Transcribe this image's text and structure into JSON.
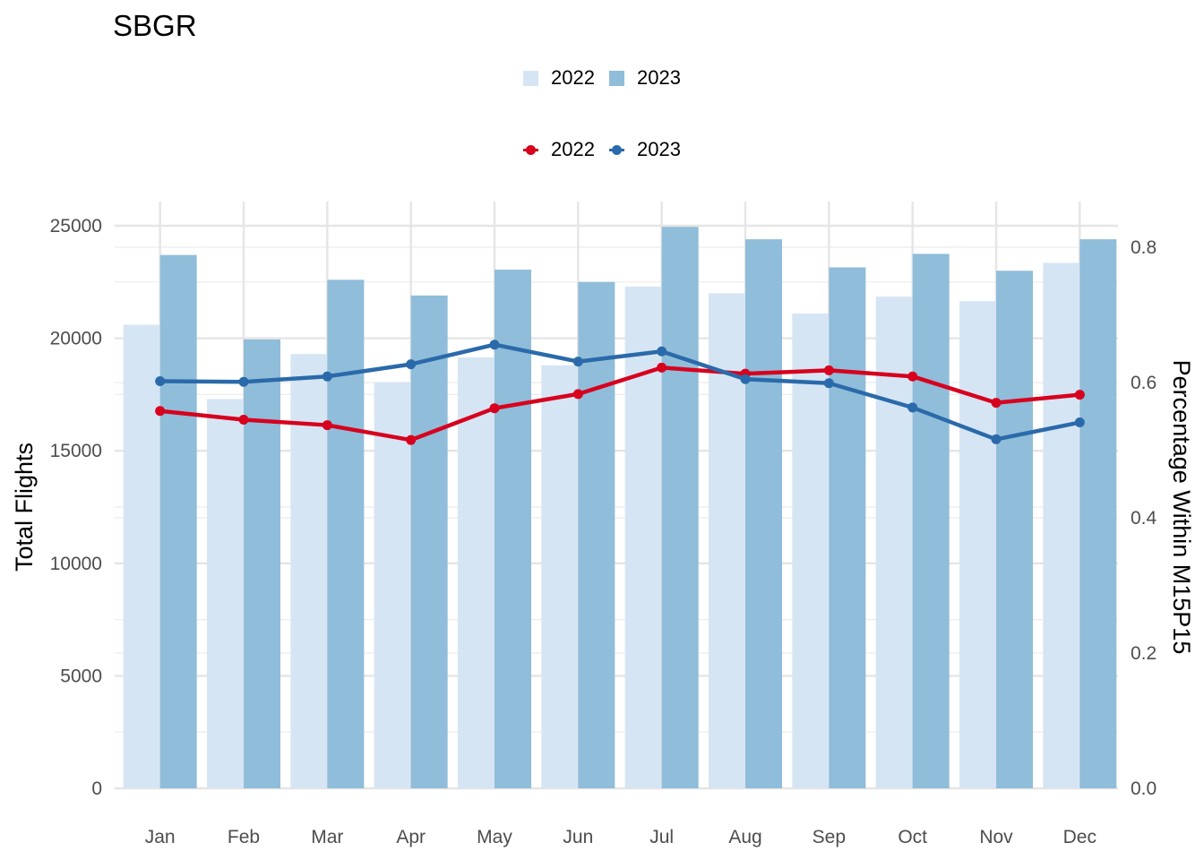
{
  "chart_data": {
    "type": "bar",
    "title": "SBGR",
    "categories": [
      "Jan",
      "Feb",
      "Mar",
      "Apr",
      "May",
      "Jun",
      "Jul",
      "Aug",
      "Sep",
      "Oct",
      "Nov",
      "Dec"
    ],
    "bar_series": [
      {
        "name": "2022",
        "color": "#d6e5f4",
        "values": [
          20600,
          17300,
          19300,
          18050,
          19150,
          18800,
          22300,
          22000,
          21100,
          21850,
          21650,
          23350
        ]
      },
      {
        "name": "2023",
        "color": "#90bdd9",
        "values": [
          23700,
          19950,
          22600,
          21900,
          23050,
          22500,
          24950,
          24400,
          23150,
          23750,
          23000,
          24400
        ]
      }
    ],
    "line_series": [
      {
        "name": "2022",
        "color": "#d7011e",
        "values": [
          0.558,
          0.545,
          0.537,
          0.515,
          0.562,
          0.583,
          0.622,
          0.613,
          0.618,
          0.609,
          0.57,
          0.582
        ]
      },
      {
        "name": "2023",
        "color": "#2b6aaa",
        "values": [
          0.602,
          0.601,
          0.609,
          0.627,
          0.656,
          0.631,
          0.646,
          0.605,
          0.599,
          0.563,
          0.516,
          0.541
        ]
      }
    ],
    "ylabel": "Total Flights",
    "ylim": [
      0,
      25000
    ],
    "yticks": [
      "0",
      "5000",
      "10000",
      "15000",
      "20000",
      "25000"
    ],
    "y2label": "Percentage Within M15P15",
    "y2lim": [
      0,
      0.8
    ],
    "y2ticks": [
      "0.0",
      "0.2",
      "0.4",
      "0.6",
      "0.8"
    ],
    "legend": {
      "bars": [
        "2022",
        "2023"
      ],
      "lines": [
        "2022",
        "2023"
      ],
      "placement": "top-center"
    },
    "grid": true
  }
}
